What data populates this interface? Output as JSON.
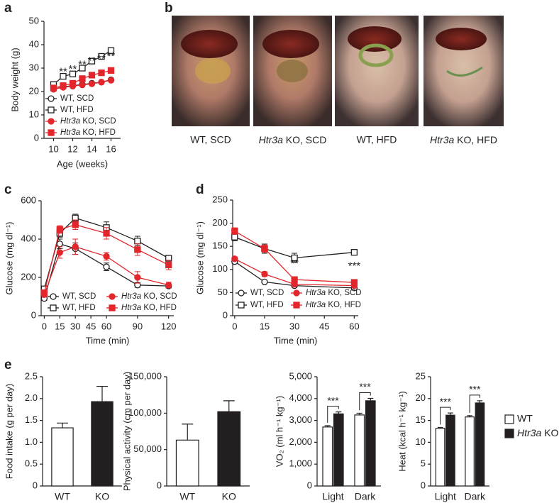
{
  "chart_data": [
    {
      "type": "line",
      "panel": "a",
      "ylabel": "Body weight (g)",
      "xlabel": "Age (weeks)",
      "x": [
        10,
        11,
        12,
        13,
        14,
        15,
        16
      ],
      "xlim": [
        9,
        17
      ],
      "xticks": [
        10,
        12,
        14,
        16
      ],
      "ylim": [
        0,
        50
      ],
      "yticks": [
        0,
        10,
        20,
        30,
        40,
        50
      ],
      "series": [
        {
          "name": "WT, SCD",
          "color": "#231f20",
          "marker": "circle",
          "filled": false,
          "values": [
            21,
            22,
            22.5,
            23,
            23.5,
            24,
            25
          ]
        },
        {
          "name": "WT, HFD",
          "color": "#231f20",
          "marker": "square",
          "filled": false,
          "values": [
            23,
            26.5,
            27.5,
            30,
            33,
            35,
            37.5
          ]
        },
        {
          "name": "Htr3a KO, SCD",
          "color": "#e2262b",
          "marker": "circle",
          "filled": true,
          "values": [
            21,
            21.8,
            22.3,
            22.8,
            23.3,
            24,
            24.8
          ]
        },
        {
          "name": "Htr3a KO, HFD",
          "color": "#e2262b",
          "marker": "square",
          "filled": true,
          "values": [
            21.5,
            22.5,
            23.5,
            25.5,
            27,
            28,
            29
          ]
        }
      ],
      "annotations": [
        {
          "x": 11,
          "text": "**"
        },
        {
          "x": 12,
          "text": "**"
        },
        {
          "x": 13,
          "text": "**"
        },
        {
          "x": 14,
          "text": "**"
        },
        {
          "x": 15,
          "text": "**"
        },
        {
          "x": 16,
          "text": "**"
        }
      ]
    },
    {
      "type": "photo",
      "panel": "b",
      "labels": [
        "WT, SCD",
        "Htr3a KO, SCD",
        "WT, HFD",
        "Htr3a KO, HFD"
      ]
    },
    {
      "type": "line",
      "panel": "c",
      "ylabel": "Glucose (mg dl⁻¹)",
      "xlabel": "Time (min)",
      "x": [
        0,
        15,
        30,
        60,
        90,
        120
      ],
      "xlim": [
        -3,
        125
      ],
      "xticks": [
        0,
        15,
        30,
        45,
        60,
        90,
        120
      ],
      "ylim": [
        0,
        600
      ],
      "yticks": [
        0,
        200,
        400,
        600
      ],
      "series": [
        {
          "name": "WT, SCD",
          "color": "#231f20",
          "marker": "circle",
          "filled": false,
          "values": [
            90,
            375,
            350,
            255,
            160,
            155
          ],
          "errors": [
            10,
            25,
            30,
            20,
            12,
            10
          ]
        },
        {
          "name": "WT, HFD",
          "color": "#231f20",
          "marker": "square",
          "filled": false,
          "values": [
            140,
            430,
            510,
            460,
            390,
            300
          ],
          "errors": [
            12,
            20,
            20,
            30,
            25,
            15
          ]
        },
        {
          "name": "Htr3a KO, SCD",
          "color": "#e2262b",
          "marker": "circle",
          "filled": true,
          "values": [
            110,
            330,
            360,
            310,
            200,
            160
          ],
          "errors": [
            10,
            30,
            40,
            20,
            30,
            15
          ]
        },
        {
          "name": "Htr3a KO, HFD",
          "color": "#e2262b",
          "marker": "square",
          "filled": true,
          "values": [
            120,
            450,
            475,
            430,
            345,
            265
          ],
          "errors": [
            10,
            20,
            25,
            30,
            30,
            25
          ]
        }
      ]
    },
    {
      "type": "line",
      "panel": "d",
      "ylabel": "Glucose (mg dl⁻¹)",
      "xlabel": "Time (min)",
      "x": [
        0,
        15,
        30,
        60
      ],
      "xlim": [
        -1,
        62
      ],
      "xticks": [
        0,
        15,
        30,
        45,
        60
      ],
      "ylim": [
        0,
        250
      ],
      "yticks": [
        0,
        50,
        100,
        150,
        200,
        250
      ],
      "series": [
        {
          "name": "WT, SCD",
          "color": "#231f20",
          "marker": "circle",
          "filled": false,
          "values": [
            117,
            73,
            65,
            60
          ],
          "errors": [
            4,
            3,
            3,
            3
          ]
        },
        {
          "name": "WT, HFD",
          "color": "#231f20",
          "marker": "square",
          "filled": false,
          "values": [
            170,
            145,
            125,
            137
          ],
          "errors": [
            8,
            10,
            10,
            3
          ]
        },
        {
          "name": "Htr3a KO, SCD",
          "color": "#e2262b",
          "marker": "circle",
          "filled": true,
          "values": [
            123,
            90,
            68,
            65
          ],
          "errors": [
            4,
            5,
            3,
            3
          ]
        },
        {
          "name": "Htr3a KO, HFD",
          "color": "#e2262b",
          "marker": "square",
          "filled": true,
          "values": [
            183,
            145,
            78,
            72
          ],
          "errors": [
            7,
            8,
            5,
            4
          ]
        }
      ],
      "annotations": [
        {
          "x": 30,
          "text": "**"
        },
        {
          "x": 60,
          "text": "***"
        }
      ]
    },
    {
      "type": "bar",
      "panel": "e",
      "ylabel": "Food intake (g per day)",
      "categories": [
        "WT",
        "KO"
      ],
      "values": [
        1.33,
        1.93
      ],
      "errors": [
        0.11,
        0.35
      ],
      "colors": [
        "#ffffff",
        "#231f20"
      ],
      "ylim": [
        0,
        2.5
      ],
      "yticks": [
        0,
        0.5,
        {
          "value": 1,
          "label": "1.0"
        },
        1.5,
        {
          "value": 2,
          "label": "2.0"
        },
        2.5
      ]
    },
    {
      "type": "bar",
      "ylabel": "Physical activity (cm per day)",
      "categories": [
        "WT",
        "KO"
      ],
      "values": [
        63000,
        102000
      ],
      "errors": [
        22000,
        15000
      ],
      "colors": [
        "#ffffff",
        "#231f20"
      ],
      "ylim": [
        0,
        150000
      ],
      "yticks": [
        0,
        {
          "value": 50000,
          "label": "50,000"
        },
        {
          "value": 100000,
          "label": "100,000"
        },
        {
          "value": 150000,
          "label": "150,000"
        }
      ]
    },
    {
      "type": "bar",
      "ylabel": "VO₂ (ml h⁻¹ kg⁻¹)",
      "categories": [
        "Light",
        "Dark"
      ],
      "series": [
        {
          "color": "#ffffff",
          "values": [
            2700,
            3250
          ],
          "errors": [
            60,
            80
          ]
        },
        {
          "color": "#231f20",
          "values": [
            3300,
            3900
          ],
          "errors": [
            90,
            110
          ]
        }
      ],
      "annotations": [
        "***",
        "***"
      ],
      "ylim": [
        0,
        5000
      ],
      "yticks": [
        0,
        {
          "value": 1000,
          "label": "1,000"
        },
        {
          "value": 2000,
          "label": "2,000"
        },
        {
          "value": 3000,
          "label": "3,000"
        },
        {
          "value": 4000,
          "label": "4,000"
        },
        {
          "value": 5000,
          "label": "5,000"
        }
      ]
    },
    {
      "type": "bar",
      "ylabel": "Heat (kcal h⁻¹ kg⁻¹)",
      "categories": [
        "Light",
        "Dark"
      ],
      "series": [
        {
          "name": "WT",
          "color": "#ffffff",
          "values": [
            13.2,
            15.8
          ],
          "errors": [
            0.2,
            0.3
          ]
        },
        {
          "name": "Htr3a KO",
          "color": "#231f20",
          "values": [
            16.2,
            19.0
          ],
          "errors": [
            0.5,
            0.5
          ]
        }
      ],
      "annotations": [
        "***",
        "***"
      ],
      "legend": "right",
      "ylim": [
        0,
        25
      ],
      "yticks": [
        0,
        5,
        10,
        15,
        20,
        25
      ]
    }
  ]
}
